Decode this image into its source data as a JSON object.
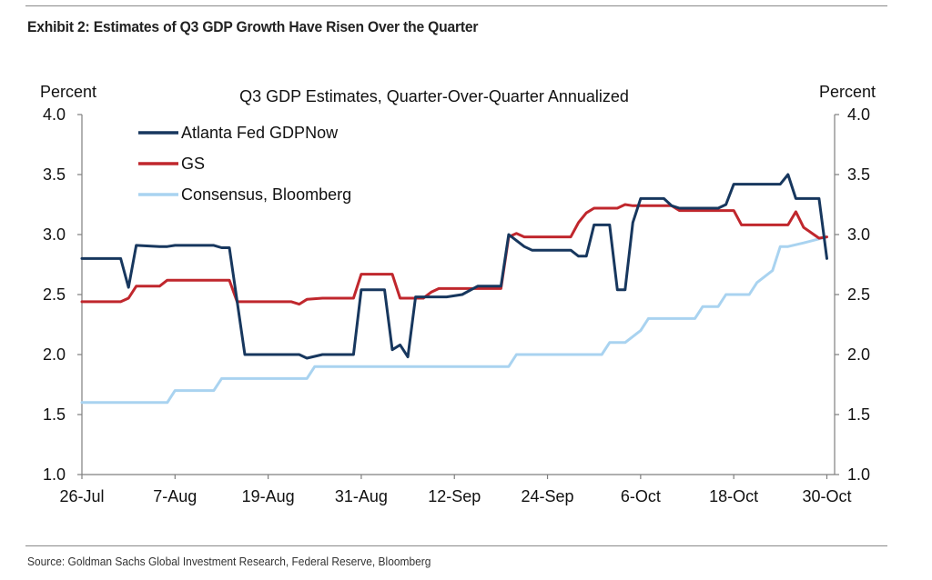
{
  "exhibit": {
    "title": "Exhibit 2: Estimates of Q3 GDP Growth Have Risen Over the Quarter",
    "source": "Source: Goldman Sachs Global Investment Research, Federal Reserve, Bloomberg"
  },
  "chart_data": {
    "type": "line",
    "title": "Q3 GDP Estimates, Quarter-Over-Quarter Annualized",
    "ylabel_left": "Percent",
    "ylabel_right": "Percent",
    "ylim": [
      1.0,
      4.0
    ],
    "yticks": [
      "1.0",
      "1.5",
      "2.0",
      "2.5",
      "3.0",
      "3.5",
      "4.0"
    ],
    "ytick_values": [
      1.0,
      1.5,
      2.0,
      2.5,
      3.0,
      3.5,
      4.0
    ],
    "xlim": [
      "2019-07-26",
      "2019-10-31"
    ],
    "xtick_labels": [
      "26-Jul",
      "7-Aug",
      "19-Aug",
      "31-Aug",
      "12-Sep",
      "24-Sep",
      "6-Oct",
      "18-Oct",
      "30-Oct"
    ],
    "xtick_dates": [
      "2019-07-26",
      "2019-08-07",
      "2019-08-19",
      "2019-08-31",
      "2019-09-12",
      "2019-09-24",
      "2019-10-06",
      "2019-10-18",
      "2019-10-30"
    ],
    "grid": false,
    "legend_position": "top-left",
    "series": [
      {
        "name": "Atlanta Fed GDPNow",
        "color": "#17375e",
        "points": [
          [
            "2019-07-26",
            2.8
          ],
          [
            "2019-07-31",
            2.8
          ],
          [
            "2019-08-01",
            2.56
          ],
          [
            "2019-08-02",
            2.91
          ],
          [
            "2019-08-05",
            2.9
          ],
          [
            "2019-08-06",
            2.9
          ],
          [
            "2019-08-07",
            2.91
          ],
          [
            "2019-08-12",
            2.91
          ],
          [
            "2019-08-13",
            2.89
          ],
          [
            "2019-08-14",
            2.89
          ],
          [
            "2019-08-16",
            2.0
          ],
          [
            "2019-08-23",
            2.0
          ],
          [
            "2019-08-24",
            1.97
          ],
          [
            "2019-08-26",
            2.0
          ],
          [
            "2019-08-30",
            2.0
          ],
          [
            "2019-08-31",
            2.54
          ],
          [
            "2019-09-03",
            2.54
          ],
          [
            "2019-09-04",
            2.04
          ],
          [
            "2019-09-05",
            2.08
          ],
          [
            "2019-09-06",
            1.98
          ],
          [
            "2019-09-07",
            2.48
          ],
          [
            "2019-09-11",
            2.48
          ],
          [
            "2019-09-13",
            2.5
          ],
          [
            "2019-09-15",
            2.57
          ],
          [
            "2019-09-18",
            2.57
          ],
          [
            "2019-09-19",
            3.0
          ],
          [
            "2019-09-20",
            2.95
          ],
          [
            "2019-09-21",
            2.9
          ],
          [
            "2019-09-22",
            2.87
          ],
          [
            "2019-09-27",
            2.87
          ],
          [
            "2019-09-28",
            2.82
          ],
          [
            "2019-09-29",
            2.82
          ],
          [
            "2019-09-30",
            3.08
          ],
          [
            "2019-10-02",
            3.08
          ],
          [
            "2019-10-03",
            2.54
          ],
          [
            "2019-10-04",
            2.54
          ],
          [
            "2019-10-05",
            3.1
          ],
          [
            "2019-10-06",
            3.3
          ],
          [
            "2019-10-09",
            3.3
          ],
          [
            "2019-10-10",
            3.24
          ],
          [
            "2019-10-11",
            3.22
          ],
          [
            "2019-10-16",
            3.22
          ],
          [
            "2019-10-17",
            3.25
          ],
          [
            "2019-10-18",
            3.42
          ],
          [
            "2019-10-24",
            3.42
          ],
          [
            "2019-10-25",
            3.5
          ],
          [
            "2019-10-26",
            3.3
          ],
          [
            "2019-10-29",
            3.3
          ],
          [
            "2019-10-30",
            2.8
          ]
        ]
      },
      {
        "name": "GS",
        "color": "#c0272d",
        "points": [
          [
            "2019-07-26",
            2.44
          ],
          [
            "2019-07-31",
            2.44
          ],
          [
            "2019-08-01",
            2.47
          ],
          [
            "2019-08-02",
            2.57
          ],
          [
            "2019-08-05",
            2.57
          ],
          [
            "2019-08-06",
            2.62
          ],
          [
            "2019-08-14",
            2.62
          ],
          [
            "2019-08-15",
            2.44
          ],
          [
            "2019-08-22",
            2.44
          ],
          [
            "2019-08-23",
            2.42
          ],
          [
            "2019-08-24",
            2.46
          ],
          [
            "2019-08-26",
            2.47
          ],
          [
            "2019-08-30",
            2.47
          ],
          [
            "2019-08-31",
            2.67
          ],
          [
            "2019-09-04",
            2.67
          ],
          [
            "2019-09-05",
            2.47
          ],
          [
            "2019-09-08",
            2.47
          ],
          [
            "2019-09-09",
            2.52
          ],
          [
            "2019-09-10",
            2.55
          ],
          [
            "2019-09-18",
            2.55
          ],
          [
            "2019-09-19",
            2.98
          ],
          [
            "2019-09-20",
            3.01
          ],
          [
            "2019-09-21",
            2.98
          ],
          [
            "2019-09-27",
            2.98
          ],
          [
            "2019-09-28",
            3.1
          ],
          [
            "2019-09-29",
            3.18
          ],
          [
            "2019-09-30",
            3.22
          ],
          [
            "2019-10-03",
            3.22
          ],
          [
            "2019-10-04",
            3.25
          ],
          [
            "2019-10-05",
            3.24
          ],
          [
            "2019-10-10",
            3.24
          ],
          [
            "2019-10-11",
            3.2
          ],
          [
            "2019-10-18",
            3.2
          ],
          [
            "2019-10-19",
            3.08
          ],
          [
            "2019-10-25",
            3.08
          ],
          [
            "2019-10-26",
            3.19
          ],
          [
            "2019-10-27",
            3.06
          ],
          [
            "2019-10-29",
            2.97
          ],
          [
            "2019-10-30",
            2.98
          ]
        ]
      },
      {
        "name": "Consensus, Bloomberg",
        "color": "#a9d3f0",
        "points": [
          [
            "2019-07-26",
            1.6
          ],
          [
            "2019-08-06",
            1.6
          ],
          [
            "2019-08-07",
            1.7
          ],
          [
            "2019-08-12",
            1.7
          ],
          [
            "2019-08-13",
            1.8
          ],
          [
            "2019-08-24",
            1.8
          ],
          [
            "2019-08-25",
            1.9
          ],
          [
            "2019-09-19",
            1.9
          ],
          [
            "2019-09-20",
            2.0
          ],
          [
            "2019-10-01",
            2.0
          ],
          [
            "2019-10-02",
            2.1
          ],
          [
            "2019-10-04",
            2.1
          ],
          [
            "2019-10-06",
            2.2
          ],
          [
            "2019-10-07",
            2.3
          ],
          [
            "2019-10-13",
            2.3
          ],
          [
            "2019-10-14",
            2.4
          ],
          [
            "2019-10-16",
            2.4
          ],
          [
            "2019-10-17",
            2.5
          ],
          [
            "2019-10-20",
            2.5
          ],
          [
            "2019-10-21",
            2.6
          ],
          [
            "2019-10-23",
            2.7
          ],
          [
            "2019-10-24",
            2.9
          ],
          [
            "2019-10-25",
            2.9
          ],
          [
            "2019-10-27",
            2.93
          ],
          [
            "2019-10-30",
            2.98
          ]
        ]
      }
    ]
  }
}
